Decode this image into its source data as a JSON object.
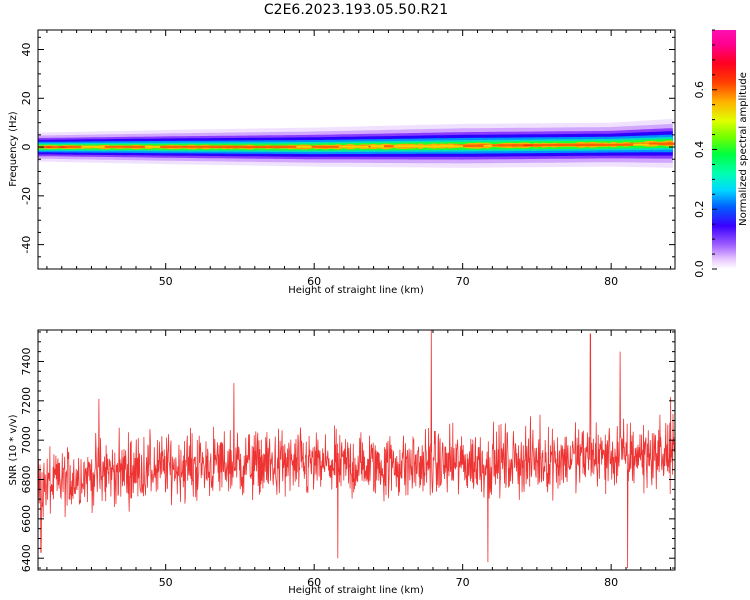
{
  "title": "C2E6.2023.193.05.50.R21",
  "colors": {
    "snr_line": "#ee3333",
    "axis": "#000000"
  },
  "chart_data": [
    {
      "type": "heatmap",
      "xlabel": "Height of straight line (km)",
      "ylabel": "Frequency (Hz)",
      "xlim": [
        41.4,
        84.3
      ],
      "ylim": [
        -50,
        48
      ],
      "xticks": [
        50,
        60,
        70,
        80
      ],
      "yticks": [
        -40,
        -20,
        0,
        20,
        40
      ],
      "description_band": "energy concentrated near 0 Hz across all heights, widening slightly with height",
      "band_center_hz": [
        {
          "x": 42,
          "y": 0
        },
        {
          "x": 50,
          "y": 0
        },
        {
          "x": 60,
          "y": 0
        },
        {
          "x": 70,
          "y": 0.5
        },
        {
          "x": 80,
          "y": 1
        },
        {
          "x": 84,
          "y": 1.5
        }
      ],
      "band_halfwidth_hz": [
        {
          "x": 42,
          "y": 3
        },
        {
          "x": 50,
          "y": 3.5
        },
        {
          "x": 60,
          "y": 4
        },
        {
          "x": 70,
          "y": 4.5
        },
        {
          "x": 80,
          "y": 4.5
        },
        {
          "x": 84,
          "y": 5
        }
      ],
      "colorbar": {
        "label": "Normalized spectral amplitude",
        "range": [
          0,
          0.8
        ],
        "ticks": [
          0.0,
          0.2,
          0.4,
          0.6
        ],
        "tick_labels": [
          "0.0",
          "0.2",
          "0.4",
          "0.6"
        ],
        "colormap": "gist_ncar"
      }
    },
    {
      "type": "line",
      "xlabel": "Height of straight line (km)",
      "ylabel": "SNR (10 * v/v)",
      "xlim": [
        41.4,
        84.3
      ],
      "ylim": [
        6340,
        7560
      ],
      "xticks": [
        50,
        60,
        70,
        80
      ],
      "yticks": [
        6400,
        6600,
        6800,
        7000,
        7200,
        7400
      ],
      "series": [
        {
          "values_summary": "noisy SNR trace fluctuating around ~6850-6900",
          "mean_profile": [
            {
              "x": 42,
              "y": 6770
            },
            {
              "x": 45,
              "y": 6830
            },
            {
              "x": 50,
              "y": 6860
            },
            {
              "x": 55,
              "y": 6880
            },
            {
              "x": 60,
              "y": 6870
            },
            {
              "x": 65,
              "y": 6870
            },
            {
              "x": 70,
              "y": 6880
            },
            {
              "x": 75,
              "y": 6900
            },
            {
              "x": 80,
              "y": 6920
            },
            {
              "x": 84,
              "y": 6930
            }
          ],
          "noise_amplitude": 130,
          "spikes": [
            {
              "x": 41.6,
              "y": 6430
            },
            {
              "x": 45.5,
              "y": 7210
            },
            {
              "x": 54.6,
              "y": 7290
            },
            {
              "x": 61.6,
              "y": 6400
            },
            {
              "x": 67.9,
              "y": 7560
            },
            {
              "x": 71.7,
              "y": 6380
            },
            {
              "x": 78.6,
              "y": 7540
            },
            {
              "x": 80.6,
              "y": 7450
            },
            {
              "x": 81.1,
              "y": 6350
            },
            {
              "x": 84.0,
              "y": 7220
            }
          ]
        }
      ]
    }
  ]
}
